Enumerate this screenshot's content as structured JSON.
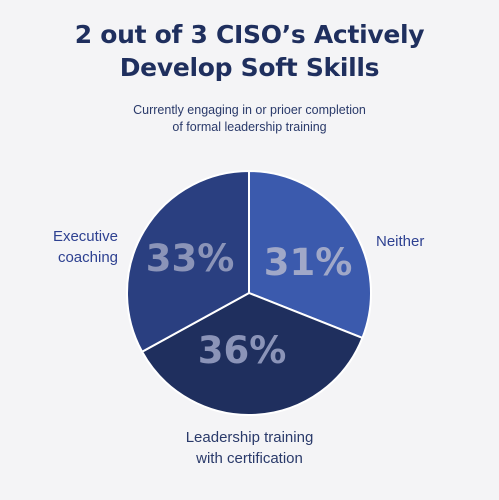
{
  "title_line1": "2 out of 3 CISO’s Actively",
  "title_line2": "Develop Soft Skills",
  "subtitle_line1": "Currently engaging in or prioer completion",
  "subtitle_line2": "of formal leadership training",
  "chart_data": {
    "type": "pie",
    "slices": [
      {
        "label_line1": "Neither",
        "label_line2": "",
        "value": 31,
        "value_label": "31%",
        "color": "#3b5aad"
      },
      {
        "label_line1": "Leadership training",
        "label_line2": "with certification",
        "value": 36,
        "value_label": "36%",
        "color": "#1f2f5e"
      },
      {
        "label_line1": "Executive",
        "label_line2": "coaching",
        "value": 33,
        "value_label": "33%",
        "color": "#2a3f80"
      }
    ]
  }
}
